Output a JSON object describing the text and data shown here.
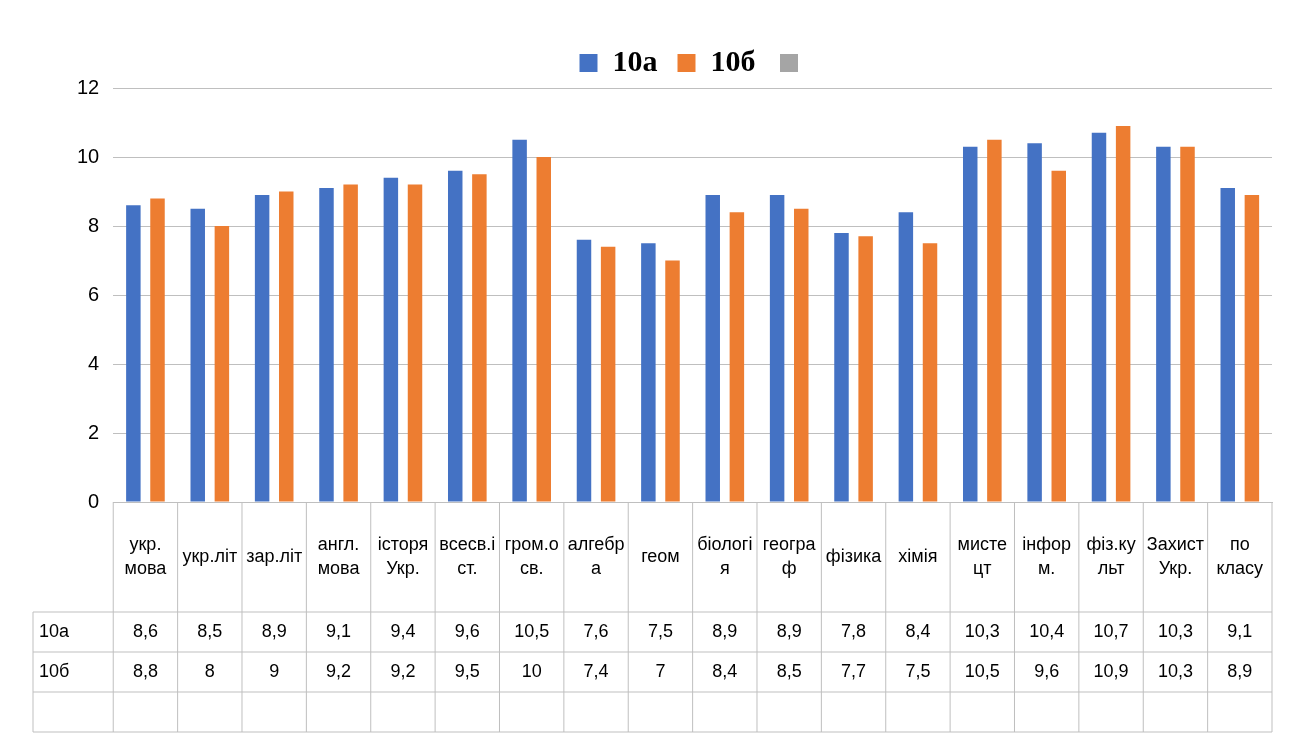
{
  "chart_data": {
    "type": "bar",
    "categories": [
      "укр. мова",
      "укр.літ",
      "зар.літ",
      "англ. мова",
      "історя Укр.",
      "всесв.іст.",
      "гром.осв.",
      "алгебра",
      "геом",
      "біологія",
      "географ",
      "фізика",
      "хімія",
      "мистецт",
      "інформ.",
      "фіз.культ",
      "Захист Укр.",
      "по класу"
    ],
    "series": [
      {
        "name": "10а",
        "color": "#4472c4",
        "values": [
          8.6,
          8.5,
          8.9,
          9.1,
          9.4,
          9.6,
          10.5,
          7.6,
          7.5,
          8.9,
          8.9,
          7.8,
          8.4,
          10.3,
          10.4,
          10.7,
          10.3,
          9.1
        ],
        "value_labels": [
          "8,6",
          "8,5",
          "8,9",
          "9,1",
          "9,4",
          "9,6",
          "10,5",
          "7,6",
          "7,5",
          "8,9",
          "8,9",
          "7,8",
          "8,4",
          "10,3",
          "10,4",
          "10,7",
          "10,3",
          "9,1"
        ]
      },
      {
        "name": "10б",
        "color": "#ed7d31",
        "values": [
          8.8,
          8,
          9,
          9.2,
          9.2,
          9.5,
          10,
          7.4,
          7,
          8.4,
          8.5,
          7.7,
          7.5,
          10.5,
          9.6,
          10.9,
          10.3,
          8.9
        ],
        "value_labels": [
          "8,8",
          "8",
          "9",
          "9,2",
          "9,2",
          "9,5",
          "10",
          "7,4",
          "7",
          "8,4",
          "8,5",
          "7,7",
          "7,5",
          "10,5",
          "9,6",
          "10,9",
          "10,3",
          "8,9"
        ]
      }
    ],
    "ylim": [
      0,
      12
    ],
    "yticks": [
      0,
      2,
      4,
      6,
      8,
      10,
      12
    ],
    "grid": "y",
    "legend": "top"
  }
}
